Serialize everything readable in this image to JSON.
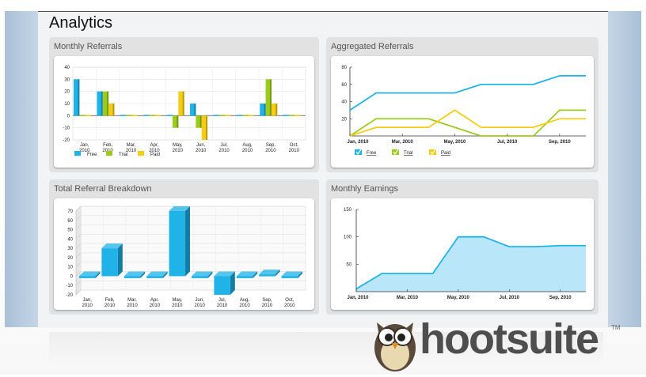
{
  "page": {
    "title": "Analytics"
  },
  "panels": {
    "monthly_referrals": "Monthly Referrals",
    "aggregated_referrals": "Aggregated Referrals",
    "total_breakdown": "Total Referral Breakdown",
    "monthly_earnings": "Monthly Earnings"
  },
  "brand": {
    "name": "hootsuite",
    "tm": "TM"
  },
  "colors": {
    "free": "#1fb3e8",
    "trial": "#9ccc1b",
    "paid": "#f5cd14"
  },
  "chart_data": [
    {
      "id": "monthly_referrals",
      "type": "bar",
      "title": "Monthly Referrals",
      "categories": [
        "Jan, 2010",
        "Feb, 2010",
        "Mar, 2010",
        "Apr, 2010",
        "May, 2010",
        "Jun, 2010",
        "Jul, 2010",
        "Aug, 2010",
        "Sep, 2010",
        "Oct, 2010"
      ],
      "series": [
        {
          "name": "Free",
          "values": [
            30,
            20,
            0,
            0,
            0,
            10,
            0,
            0,
            10,
            0
          ]
        },
        {
          "name": "Trial",
          "values": [
            0,
            20,
            0,
            0,
            -10,
            -10,
            0,
            0,
            30,
            0
          ]
        },
        {
          "name": "Paid",
          "values": [
            0,
            10,
            0,
            0,
            20,
            -20,
            0,
            0,
            10,
            0
          ]
        }
      ],
      "yticks": [
        "40",
        "30",
        "20",
        "10",
        "0",
        "-10",
        "-20"
      ],
      "ylim": [
        -20,
        40
      ],
      "legend": "bottom-left"
    },
    {
      "id": "aggregated_referrals",
      "type": "line",
      "title": "Aggregated Referrals",
      "x": [
        "Jan, 2010",
        "Feb, 2010",
        "Mar, 2010",
        "Apr, 2010",
        "May, 2010",
        "Jun, 2010",
        "Jul, 2010",
        "Aug, 2010",
        "Sep, 2010",
        "Oct, 2010"
      ],
      "xticks": [
        "Jan, 2010",
        "Mar, 2010",
        "May, 2010",
        "Jul, 2010",
        "Sep, 2010"
      ],
      "series": [
        {
          "name": "Free",
          "values": [
            30,
            50,
            50,
            50,
            50,
            60,
            60,
            60,
            70,
            70
          ]
        },
        {
          "name": "Trial",
          "values": [
            0,
            20,
            20,
            20,
            10,
            0,
            0,
            0,
            30,
            30
          ]
        },
        {
          "name": "Paid",
          "values": [
            0,
            10,
            10,
            10,
            30,
            10,
            10,
            10,
            20,
            20
          ]
        }
      ],
      "yticks": [
        "80",
        "60",
        "40",
        "20"
      ],
      "ylim": [
        0,
        80
      ],
      "legend": "bottom-left"
    },
    {
      "id": "total_breakdown",
      "type": "bar",
      "title": "Total Referral Breakdown",
      "categories": [
        "Jan, 2010",
        "Feb, 2010",
        "Mar, 2010",
        "Apr, 2010",
        "May, 2010",
        "Jun, 2010",
        "Jul, 2010",
        "Aug, 2010",
        "Sep, 2010",
        "Oct, 2010"
      ],
      "values": [
        0,
        30,
        0,
        0,
        70,
        0,
        -20,
        0,
        2,
        0
      ],
      "yticks": [
        "70",
        "60",
        "50",
        "40",
        "30",
        "20",
        "10",
        "0",
        "-10",
        "-20"
      ],
      "ylim": [
        -20,
        70
      ]
    },
    {
      "id": "monthly_earnings",
      "type": "area",
      "title": "Monthly Earnings",
      "x": [
        "Jan, 2010",
        "Feb, 2010",
        "Mar, 2010",
        "Apr, 2010",
        "May, 2010",
        "Jun, 2010",
        "Jul, 2010",
        "Aug, 2010",
        "Sep, 2010",
        "Oct, 2010"
      ],
      "xticks": [
        "Jan, 2010",
        "Mar, 2010",
        "May, 2010",
        "Jul, 2010",
        "Sep, 2010"
      ],
      "values": [
        5,
        33,
        33,
        33,
        100,
        100,
        82,
        82,
        84,
        84
      ],
      "yticks": [
        "150",
        "100",
        "50"
      ],
      "ylim": [
        0,
        150
      ]
    }
  ]
}
